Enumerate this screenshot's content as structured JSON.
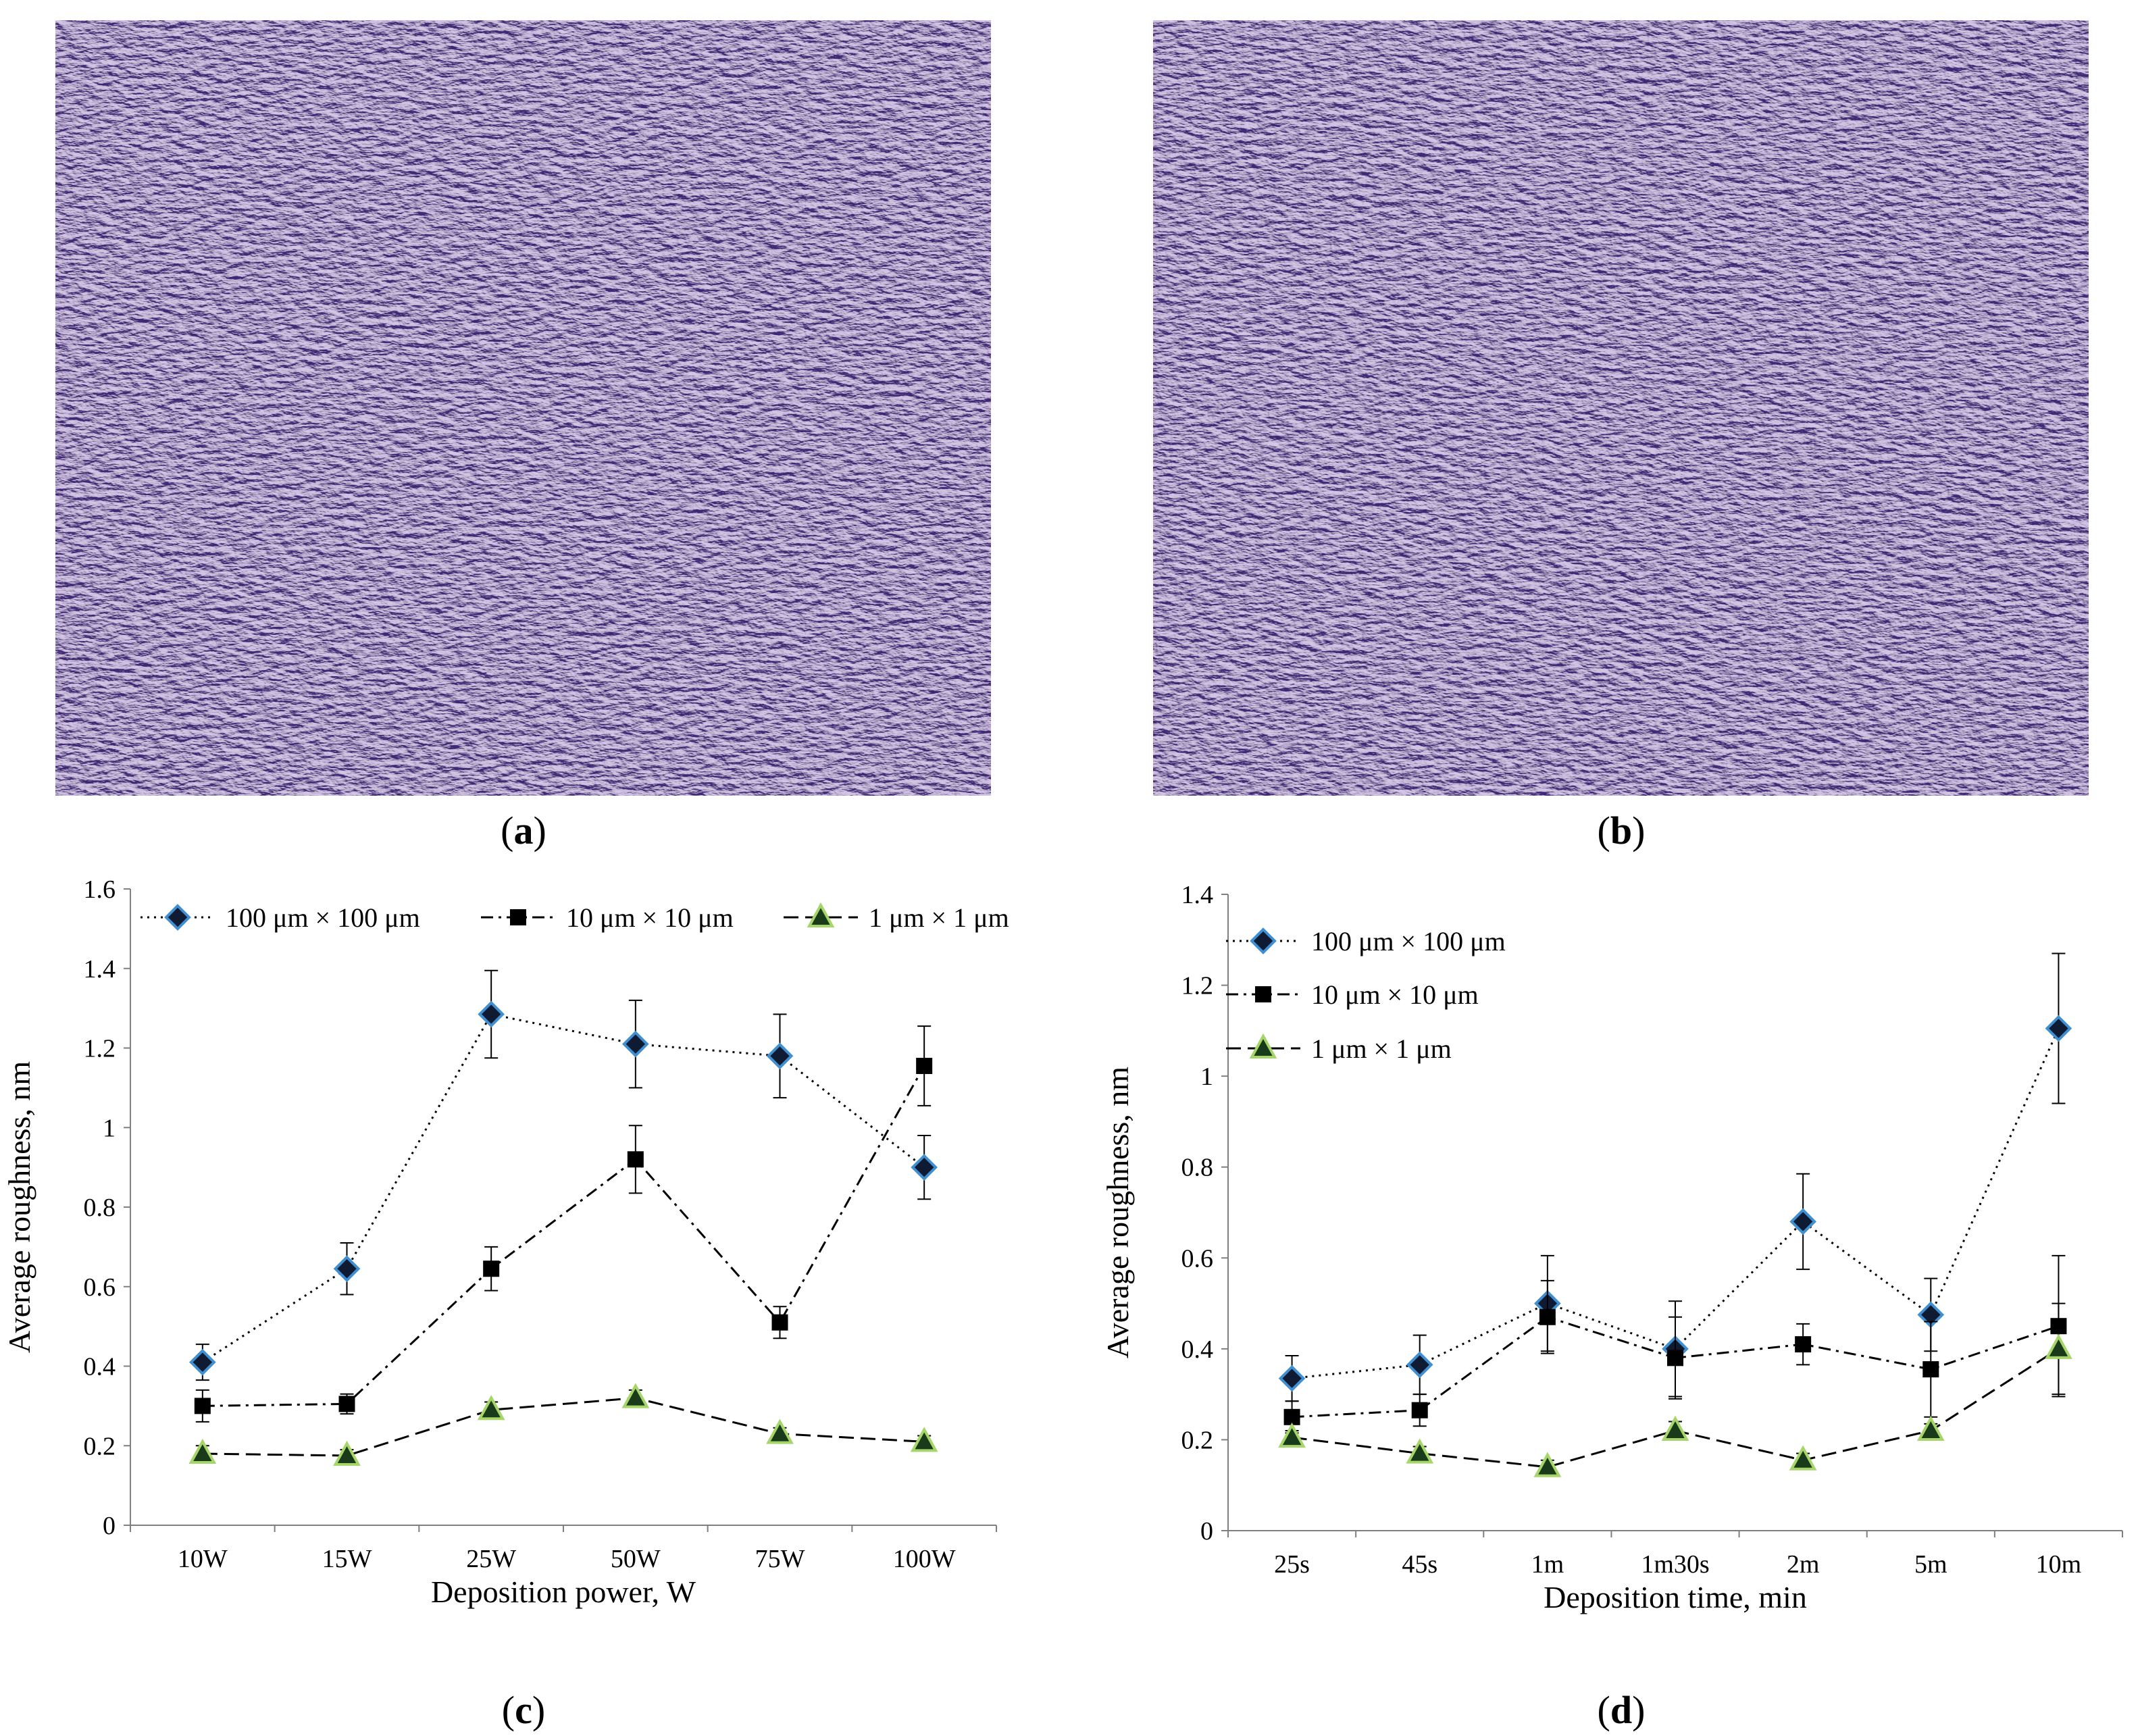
{
  "panels": {
    "a": {
      "label": "a"
    },
    "b": {
      "label": "b"
    },
    "c": {
      "label": "c"
    },
    "d": {
      "label": "d"
    }
  },
  "colors": {
    "afm_base": "#6e4f92",
    "afm_light": "#d9d1e6",
    "afm_dark": "#3e2a58",
    "diamond_fill": "#0f1a33",
    "diamond_edge": "#3f8fd1",
    "square_fill": "#000000",
    "triangle_fill": "#1a3b1a",
    "triangle_edge": "#a6d56a"
  },
  "chart_data": [
    {
      "id": "c",
      "type": "line",
      "xlabel": "Deposition power, W",
      "ylabel": "Average roughness, nm",
      "categories": [
        "10W",
        "15W",
        "25W",
        "50W",
        "75W",
        "100W"
      ],
      "ylim": [
        0,
        1.6
      ],
      "yticks": [
        0,
        0.2,
        0.4,
        0.6,
        0.8,
        1,
        1.2,
        1.4,
        1.6
      ],
      "ytick_labels": [
        "0",
        "0.2",
        "0.4",
        "0.6",
        "0.8",
        "1",
        "1.2",
        "1.4",
        "1.6"
      ],
      "legend_position": "top",
      "series": [
        {
          "name": "100 μm × 100 μm",
          "marker": "diamond",
          "dash": "dotted",
          "values": [
            0.41,
            0.645,
            1.285,
            1.21,
            1.18,
            0.9
          ],
          "errors": [
            0.045,
            0.065,
            0.11,
            0.11,
            0.105,
            0.08
          ]
        },
        {
          "name": "10 μm × 10 μm",
          "marker": "square",
          "dash": "dashdot",
          "values": [
            0.3,
            0.305,
            0.645,
            0.92,
            0.51,
            1.155
          ],
          "errors": [
            0.04,
            0.025,
            0.055,
            0.085,
            0.04,
            0.1
          ]
        },
        {
          "name": "1 μm × 1 μm",
          "marker": "triangle",
          "dash": "dashed",
          "values": [
            0.18,
            0.175,
            0.29,
            0.32,
            0.23,
            0.21
          ],
          "errors": [
            0.02,
            0.015,
            0.02,
            0.02,
            0.015,
            0.015
          ]
        }
      ]
    },
    {
      "id": "d",
      "type": "line",
      "xlabel": "Deposition time, min",
      "ylabel": "Average roughness, nm",
      "categories": [
        "25s",
        "45s",
        "1m",
        "1m30s",
        "2m",
        "5m",
        "10m"
      ],
      "ylim": [
        0,
        1.4
      ],
      "yticks": [
        0,
        0.2,
        0.4,
        0.6,
        0.8,
        1,
        1.2,
        1.4
      ],
      "ytick_labels": [
        "0",
        "0.2",
        "0.4",
        "0.6",
        "0.8",
        "1",
        "1.2",
        "1.4"
      ],
      "legend_position": "top-left",
      "series": [
        {
          "name": "100 μm × 100 μm",
          "marker": "diamond",
          "dash": "dotted",
          "values": [
            0.335,
            0.365,
            0.5,
            0.4,
            0.68,
            0.475,
            1.105
          ],
          "errors": [
            0.05,
            0.065,
            0.105,
            0.105,
            0.105,
            0.08,
            0.165
          ]
        },
        {
          "name": "10 μm × 10 μm",
          "marker": "square",
          "dash": "dashdot",
          "values": [
            0.25,
            0.265,
            0.47,
            0.38,
            0.41,
            0.355,
            0.45
          ],
          "errors": [
            0.035,
            0.035,
            0.08,
            0.09,
            0.045,
            0.105,
            0.155
          ]
        },
        {
          "name": "1 μm × 1 μm",
          "marker": "triangle",
          "dash": "dashed",
          "values": [
            0.205,
            0.17,
            0.14,
            0.22,
            0.155,
            0.22,
            0.4
          ],
          "errors": [
            0.015,
            0.015,
            0.015,
            0.02,
            0.015,
            0.015,
            0.1
          ]
        }
      ]
    }
  ]
}
